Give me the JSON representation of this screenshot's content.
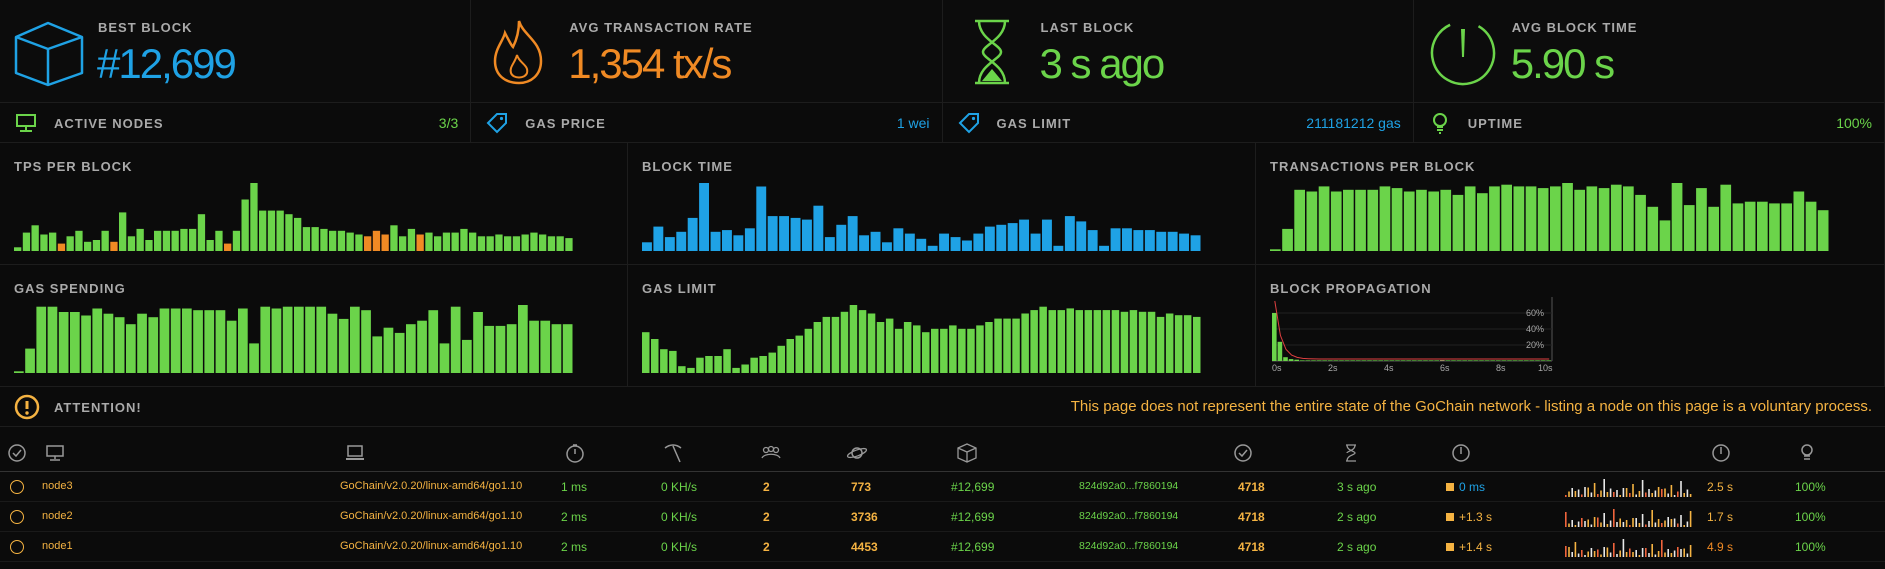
{
  "stats": {
    "best_block": {
      "label": "BEST BLOCK",
      "value": "#12,699",
      "icon": "cube-icon",
      "color": "#1fa2e5"
    },
    "avg_tx_rate": {
      "label": "AVG TRANSACTION RATE",
      "value": "1,354 tx/s",
      "icon": "fire-icon",
      "color": "#f08a24"
    },
    "last_block": {
      "label": "LAST BLOCK",
      "value": "3 s ago",
      "icon": "hourglass-icon",
      "color": "#6bd44a"
    },
    "avg_block_time": {
      "label": "AVG BLOCK TIME",
      "value": "5.90 s",
      "icon": "gauge-icon",
      "color": "#6bd44a"
    }
  },
  "small_stats": {
    "active_nodes": {
      "label": "ACTIVE NODES",
      "value": "3/3",
      "icon": "monitor-icon",
      "color": "#6bd44a"
    },
    "gas_price": {
      "label": "GAS PRICE",
      "value": "1 wei",
      "icon": "tag-icon",
      "color": "#1fa2e5"
    },
    "gas_limit": {
      "label": "GAS LIMIT",
      "value": "211181212 gas",
      "icon": "tag-icon",
      "color": "#1fa2e5"
    },
    "uptime": {
      "label": "UPTIME",
      "value": "100%",
      "icon": "bulb-icon",
      "color": "#6bd44a"
    }
  },
  "chart_data": [
    {
      "type": "bar",
      "title": "TPS PER BLOCK",
      "color": "#6bd44a",
      "values": [
        2,
        10,
        14,
        9,
        10,
        4,
        8,
        11,
        5,
        6,
        11,
        5,
        21,
        8,
        12,
        6,
        11,
        11,
        11,
        12,
        12,
        20,
        6,
        11,
        4,
        11,
        28,
        37,
        22,
        22,
        22,
        20,
        18,
        13,
        13,
        12,
        11,
        11,
        10,
        9,
        8,
        11,
        9,
        14,
        8,
        12,
        9,
        10,
        8,
        10,
        10,
        12,
        10,
        8,
        8,
        9,
        8,
        8,
        9,
        10,
        9,
        8,
        8,
        7
      ],
      "highlight_color": "#f08a24",
      "highlight_index": [
        5,
        11,
        24,
        40,
        41,
        42,
        46
      ]
    },
    {
      "type": "bar",
      "title": "BLOCK TIME",
      "color": "#1fa2e5",
      "values": [
        5,
        14,
        8,
        11,
        19,
        39,
        11,
        12,
        9,
        13,
        37,
        20,
        20,
        19,
        18,
        26,
        8,
        15,
        20,
        9,
        11,
        5,
        13,
        10,
        7,
        3,
        10,
        8,
        6,
        10,
        14,
        15,
        16,
        18,
        10,
        18,
        3,
        20,
        17,
        12,
        3,
        13,
        13,
        12,
        12,
        11,
        11,
        10,
        9
      ],
      "highlight_color": "",
      "highlight_index": []
    },
    {
      "type": "bar",
      "title": "TRANSACTIONS PER BLOCK",
      "color": "#6bd44a",
      "values": [
        1,
        13,
        36,
        35,
        38,
        35,
        36,
        36,
        36,
        38,
        37,
        35,
        36,
        35,
        36,
        33,
        38,
        34,
        38,
        39,
        38,
        38,
        37,
        38,
        40,
        36,
        38,
        37,
        39,
        38,
        33,
        26,
        18,
        40,
        27,
        37,
        26,
        39,
        28,
        29,
        29,
        28,
        28,
        35,
        29,
        24
      ],
      "highlight_color": "",
      "highlight_index": []
    },
    {
      "type": "bar",
      "title": "GAS SPENDING",
      "color": "#6bd44a",
      "values": [
        1,
        14,
        38,
        38,
        35,
        35,
        33,
        37,
        34,
        32,
        28,
        34,
        32,
        37,
        37,
        37,
        36,
        36,
        36,
        30,
        37,
        17,
        38,
        37,
        38,
        38,
        38,
        38,
        34,
        31,
        38,
        36,
        21,
        26,
        23,
        28,
        30,
        36,
        17,
        38,
        19,
        35,
        27,
        27,
        28,
        39,
        30,
        30,
        28,
        28
      ],
      "highlight_color": "",
      "highlight_index": []
    },
    {
      "type": "bar",
      "title": "GAS LIMIT",
      "color": "#6bd44a",
      "values": [
        24,
        20,
        14,
        13,
        4,
        3,
        9,
        10,
        10,
        14,
        3,
        5,
        9,
        10,
        12,
        16,
        20,
        22,
        26,
        30,
        33,
        33,
        36,
        40,
        37,
        35,
        30,
        32,
        26,
        30,
        28,
        24,
        26,
        26,
        28,
        26,
        26,
        28,
        30,
        32,
        32,
        32,
        35,
        37,
        39,
        37,
        37,
        38,
        37,
        37,
        37,
        37,
        37,
        36,
        37,
        36,
        36,
        33,
        35,
        34,
        34,
        33
      ],
      "highlight_color": "",
      "highlight_index": []
    },
    {
      "type": "histogram",
      "title": "BLOCK PROPAGATION",
      "x_ticks": [
        "0s",
        "2s",
        "4s",
        "6s",
        "8s",
        "10s"
      ],
      "y_ticks": [
        "60%",
        "40%",
        "20%"
      ],
      "values": [
        75,
        30,
        6,
        3,
        2,
        1,
        1,
        1,
        1,
        1,
        1,
        1,
        1,
        1,
        1,
        1,
        1,
        1,
        1,
        1,
        1,
        1,
        1,
        1,
        1,
        1,
        1,
        1,
        1,
        1,
        1,
        1,
        1,
        1,
        1,
        1,
        1,
        1,
        1,
        1,
        1,
        1,
        1,
        1,
        1,
        1,
        1,
        1,
        1,
        1
      ]
    }
  ],
  "attention": {
    "label": "ATTENTION!",
    "message": "This page does not represent the entire state of the GoChain network - listing a node on this page is a voluntary process."
  },
  "table": {
    "header_icons": [
      "check-circle-icon",
      "monitor-icon",
      "laptop-icon",
      "timer-icon",
      "pickaxe-icon",
      "peers-icon",
      "planet-icon",
      "cube-icon",
      "check-circle-icon",
      "hourglass-icon",
      "gauge-icon",
      "gauge-icon",
      "bulb-icon"
    ],
    "rows": [
      {
        "name": "node3",
        "client": "GoChain/v2.0.20/linux-amd64/go1.10",
        "latency": "1 ms",
        "hashrate": "0 KH/s",
        "peers": "2",
        "pending": "773",
        "block": "#12,699",
        "hash": "824d92a0...f7860194",
        "difficulty": "4718",
        "last_block": "3 s ago",
        "propagation": "0 ms",
        "prop_color": "#1fa2e5",
        "avg_prop": "2.5 s",
        "avg_prop_color": "#f5b342",
        "uptime": "100%"
      },
      {
        "name": "node2",
        "client": "GoChain/v2.0.20/linux-amd64/go1.10",
        "latency": "2 ms",
        "hashrate": "0 KH/s",
        "peers": "2",
        "pending": "3736",
        "block": "#12,699",
        "hash": "824d92a0...f7860194",
        "difficulty": "4718",
        "last_block": "2 s ago",
        "propagation": "+1.3 s",
        "prop_color": "#f5b342",
        "avg_prop": "1.7 s",
        "avg_prop_color": "#f5b342",
        "uptime": "100%"
      },
      {
        "name": "node1",
        "client": "GoChain/v2.0.20/linux-amd64/go1.10",
        "latency": "2 ms",
        "hashrate": "0 KH/s",
        "peers": "2",
        "pending": "4453",
        "block": "#12,699",
        "hash": "824d92a0...f7860194",
        "difficulty": "4718",
        "last_block": "2 s ago",
        "propagation": "+1.4 s",
        "prop_color": "#f5b342",
        "avg_prop": "4.9 s",
        "avg_prop_color": "#f08a24",
        "uptime": "100%"
      }
    ]
  }
}
